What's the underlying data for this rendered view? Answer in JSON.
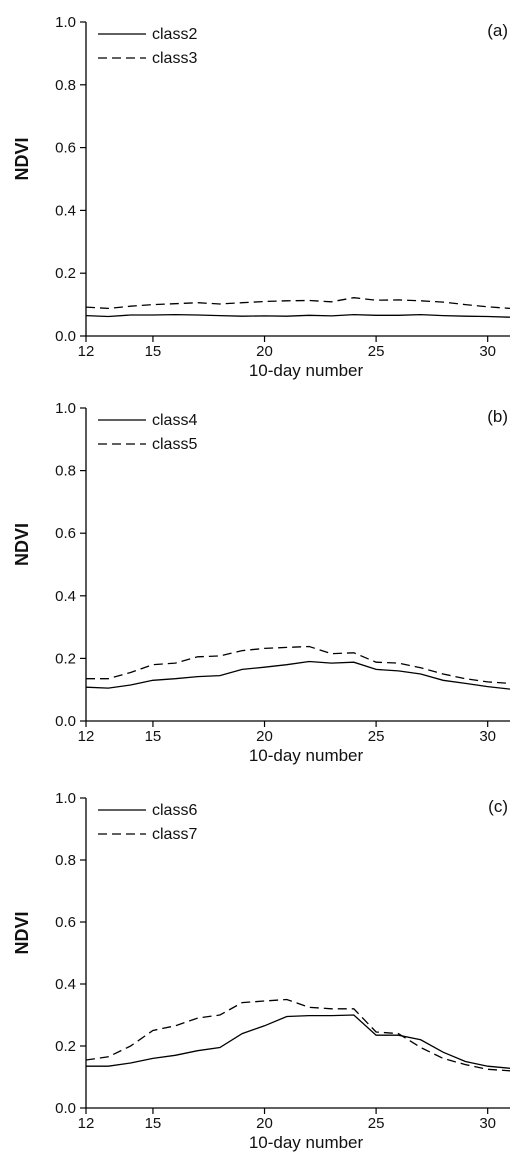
{
  "chart_data": [
    {
      "type": "line",
      "panel_label": "(a)",
      "xlabel": "10-day number",
      "ylabel": "NDVI",
      "xlim": [
        12,
        31
      ],
      "ylim": [
        0,
        1.0
      ],
      "xticks": [
        "12",
        "15",
        "20",
        "25",
        "30"
      ],
      "yticks": [
        "0.0",
        "0.2",
        "0.4",
        "0.6",
        "0.8",
        "1.0"
      ],
      "grid": false,
      "legend_position": "top-left",
      "x": [
        12,
        13,
        14,
        15,
        16,
        17,
        18,
        19,
        20,
        21,
        22,
        23,
        24,
        25,
        26,
        27,
        28,
        29,
        30,
        31
      ],
      "series": [
        {
          "name": "class2",
          "style": "solid",
          "values": [
            0.065,
            0.062,
            0.067,
            0.067,
            0.068,
            0.067,
            0.065,
            0.063,
            0.064,
            0.063,
            0.066,
            0.064,
            0.068,
            0.066,
            0.066,
            0.068,
            0.065,
            0.063,
            0.062,
            0.06
          ]
        },
        {
          "name": "class3",
          "style": "dashed",
          "values": [
            0.092,
            0.088,
            0.095,
            0.1,
            0.103,
            0.106,
            0.102,
            0.106,
            0.11,
            0.112,
            0.113,
            0.109,
            0.122,
            0.114,
            0.115,
            0.112,
            0.108,
            0.1,
            0.093,
            0.088
          ]
        }
      ]
    },
    {
      "type": "line",
      "panel_label": "(b)",
      "xlabel": "10-day number",
      "ylabel": "NDVI",
      "xlim": [
        12,
        31
      ],
      "ylim": [
        0,
        1.0
      ],
      "xticks": [
        "12",
        "15",
        "20",
        "25",
        "30"
      ],
      "yticks": [
        "0.0",
        "0.2",
        "0.4",
        "0.6",
        "0.8",
        "1.0"
      ],
      "grid": false,
      "legend_position": "top-left",
      "x": [
        12,
        13,
        14,
        15,
        16,
        17,
        18,
        19,
        20,
        21,
        22,
        23,
        24,
        25,
        26,
        27,
        28,
        29,
        30,
        31
      ],
      "series": [
        {
          "name": "class4",
          "style": "solid",
          "values": [
            0.108,
            0.105,
            0.115,
            0.13,
            0.135,
            0.142,
            0.145,
            0.165,
            0.172,
            0.18,
            0.19,
            0.185,
            0.188,
            0.165,
            0.16,
            0.15,
            0.13,
            0.12,
            0.11,
            0.102
          ]
        },
        {
          "name": "class5",
          "style": "dashed",
          "values": [
            0.135,
            0.135,
            0.155,
            0.18,
            0.185,
            0.205,
            0.208,
            0.225,
            0.232,
            0.235,
            0.238,
            0.215,
            0.218,
            0.188,
            0.185,
            0.17,
            0.15,
            0.135,
            0.125,
            0.12
          ]
        }
      ]
    },
    {
      "type": "line",
      "panel_label": "(c)",
      "xlabel": "10-day number",
      "ylabel": "NDVI",
      "xlim": [
        12,
        31
      ],
      "ylim": [
        0,
        1.0
      ],
      "xticks": [
        "12",
        "15",
        "20",
        "25",
        "30"
      ],
      "yticks": [
        "0.0",
        "0.2",
        "0.4",
        "0.6",
        "0.8",
        "1.0"
      ],
      "grid": false,
      "legend_position": "top-left",
      "x": [
        12,
        13,
        14,
        15,
        16,
        17,
        18,
        19,
        20,
        21,
        22,
        23,
        24,
        25,
        26,
        27,
        28,
        29,
        30,
        31
      ],
      "series": [
        {
          "name": "class6",
          "style": "solid",
          "values": [
            0.135,
            0.135,
            0.145,
            0.16,
            0.17,
            0.185,
            0.195,
            0.24,
            0.265,
            0.295,
            0.298,
            0.298,
            0.3,
            0.235,
            0.235,
            0.22,
            0.18,
            0.15,
            0.135,
            0.128
          ]
        },
        {
          "name": "class7",
          "style": "dashed",
          "values": [
            0.155,
            0.165,
            0.2,
            0.25,
            0.265,
            0.29,
            0.3,
            0.34,
            0.345,
            0.35,
            0.325,
            0.32,
            0.32,
            0.245,
            0.24,
            0.195,
            0.16,
            0.14,
            0.125,
            0.12
          ]
        }
      ]
    }
  ]
}
